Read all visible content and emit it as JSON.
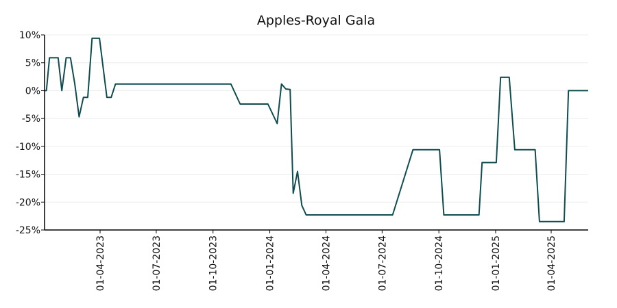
{
  "chart_data": {
    "type": "line",
    "title": "Apples-Royal Gala",
    "xlabel": "",
    "ylabel": "",
    "colors": {
      "line": "#0f4c4f",
      "grid": "#ececec",
      "axis": "#000000"
    },
    "grid": {
      "horizontal": true,
      "vertical": false
    },
    "legend": "none",
    "xlim": [
      "2023-01-01",
      "2025-05-31"
    ],
    "ylim": [
      -25,
      10
    ],
    "y_ticks": [
      {
        "value": 10,
        "label": "10%"
      },
      {
        "value": 5,
        "label": "5%"
      },
      {
        "value": 0,
        "label": "0%"
      },
      {
        "value": -5,
        "label": "-5%"
      },
      {
        "value": -10,
        "label": "-10%"
      },
      {
        "value": -15,
        "label": "-15%"
      },
      {
        "value": -20,
        "label": "-20%"
      },
      {
        "value": -25,
        "label": "-25%"
      }
    ],
    "x_ticks": [
      {
        "value": "2023-04-01",
        "label": "01-04-2023"
      },
      {
        "value": "2023-07-01",
        "label": "01-07-2023"
      },
      {
        "value": "2023-10-01",
        "label": "01-10-2023"
      },
      {
        "value": "2024-01-01",
        "label": "01-01-2024"
      },
      {
        "value": "2024-04-01",
        "label": "01-04-2024"
      },
      {
        "value": "2024-07-01",
        "label": "01-07-2024"
      },
      {
        "value": "2024-10-01",
        "label": "01-10-2024"
      },
      {
        "value": "2025-01-01",
        "label": "01-01-2025"
      },
      {
        "value": "2025-04-01",
        "label": "01-04-2025"
      }
    ],
    "series": [
      {
        "x": [
          "2023-01-01",
          "2023-01-04",
          "2023-01-09",
          "2023-01-23",
          "2023-01-29",
          "2023-02-05",
          "2023-02-12",
          "2023-02-19",
          "2023-02-26",
          "2023-03-05",
          "2023-03-12",
          "2023-03-19",
          "2023-03-31",
          "2023-04-12",
          "2023-04-19",
          "2023-04-26",
          "2023-05-03",
          "2023-10-30",
          "2023-11-14",
          "2023-12-29",
          "2024-01-13",
          "2024-01-20",
          "2024-01-27",
          "2024-02-03",
          "2024-02-08",
          "2024-02-15",
          "2024-02-22",
          "2024-02-29",
          "2024-03-07",
          "2024-07-18",
          "2024-08-20",
          "2024-10-02",
          "2024-10-09",
          "2024-12-05",
          "2024-12-10",
          "2025-01-02",
          "2025-01-09",
          "2025-01-23",
          "2025-02-01",
          "2025-03-06",
          "2025-03-13",
          "2025-04-22",
          "2025-04-29",
          "2025-05-31"
        ],
        "y": [
          0,
          0,
          5.9,
          5.9,
          0,
          5.9,
          5.9,
          1.2,
          -4.7,
          -1.2,
          -1.2,
          9.4,
          9.4,
          -1.2,
          -1.2,
          1.2,
          1.2,
          1.2,
          -2.4,
          -2.4,
          -5.9,
          1.2,
          0.3,
          0.2,
          -18.4,
          -14.5,
          -20.6,
          -22.3,
          -22.3,
          -22.3,
          -10.6,
          -10.6,
          -22.3,
          -22.3,
          -12.9,
          -12.9,
          2.4,
          2.4,
          -10.6,
          -10.6,
          -23.5,
          -23.5,
          0,
          0
        ]
      }
    ]
  }
}
